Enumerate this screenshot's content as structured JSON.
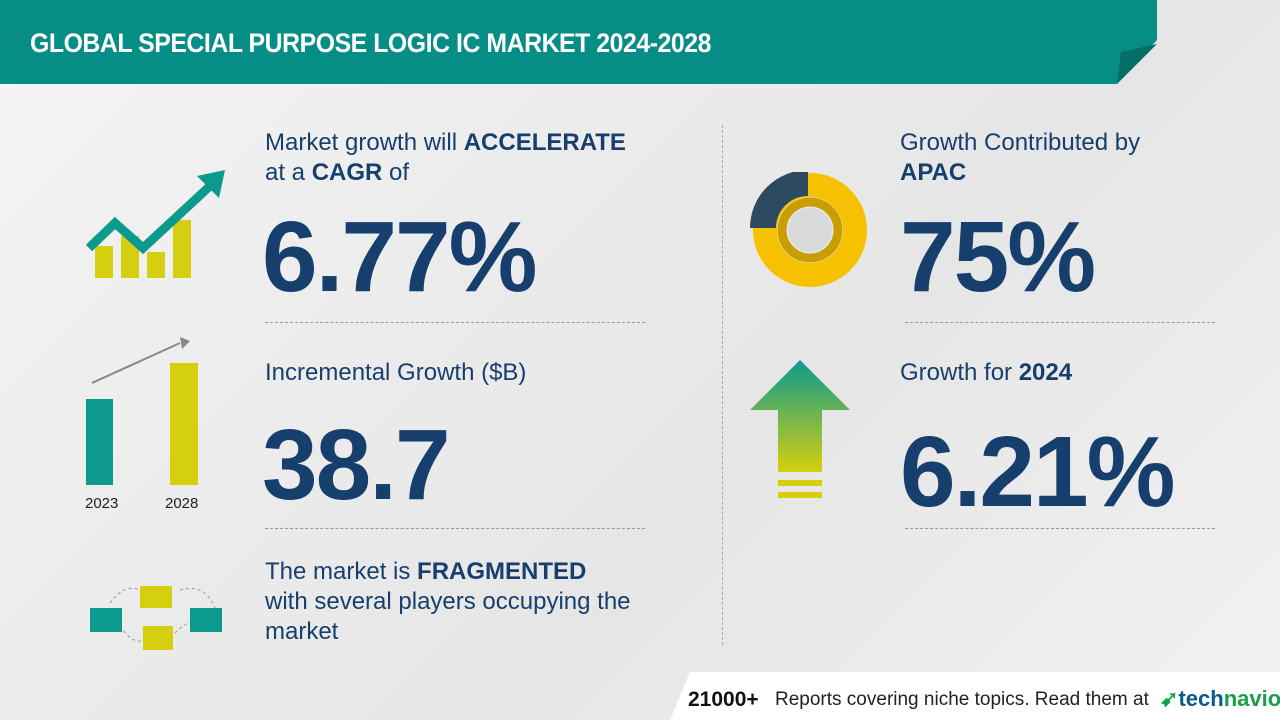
{
  "title": "GLOBAL SPECIAL PURPOSE LOGIC IC MARKET 2024-2028",
  "cagr": {
    "pre": "Market growth will ",
    "bold1": "ACCELERATE",
    "mid": "at a ",
    "bold2": "CAGR",
    "post": " of",
    "value": "6.77%"
  },
  "incremental": {
    "label": "Incremental Growth ($B)",
    "value": "38.7",
    "years": [
      "2023",
      "2028"
    ]
  },
  "fragmented": {
    "pre": "The market is ",
    "bold": "FRAGMENTED",
    "line2": "with several players occupying the",
    "line3": "market"
  },
  "region": {
    "label": "Growth Contributed by",
    "bold": "APAC",
    "value": "75%",
    "share": 0.75
  },
  "yoy": {
    "label": "Growth for ",
    "year": "2024",
    "value": "6.21%"
  },
  "footer": {
    "count": "21000+",
    "text": "Reports covering niche topics. Read them at",
    "logo": "technavio"
  },
  "colors": {
    "header": "#068e86",
    "navy": "#163f6e",
    "yellow": "#d6cf0f",
    "teal": "#0c9a8f",
    "donut": "#f5c100"
  }
}
